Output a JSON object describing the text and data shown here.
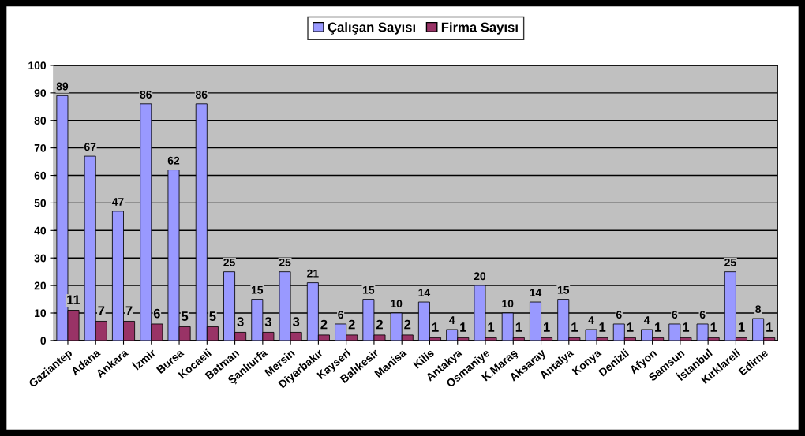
{
  "chart_data": {
    "type": "bar",
    "categories": [
      "Gaziantep",
      "Adana",
      "Ankara",
      "İzmir",
      "Bursa",
      "Kocaeli",
      "Batman",
      "Şanlıurfa",
      "Mersin",
      "Diyarbakır",
      "Kayseri",
      "Balıkesir",
      "Manisa",
      "Kilis",
      "Antakya",
      "Osmaniye",
      "K.Maraş",
      "Aksaray",
      "Antalya",
      "Konya",
      "Denizli",
      "Afyon",
      "Samsun",
      "İstanbul",
      "Kırklareli",
      "Edirne"
    ],
    "series": [
      {
        "name": "Çalışan Sayısı",
        "color": "#9999ff",
        "values": [
          89,
          67,
          47,
          86,
          62,
          86,
          25,
          15,
          25,
          21,
          6,
          15,
          10,
          14,
          4,
          20,
          10,
          14,
          15,
          4,
          6,
          4,
          6,
          6,
          25,
          8
        ]
      },
      {
        "name": "Firma Sayısı",
        "color": "#993366",
        "values": [
          11,
          7,
          7,
          6,
          5,
          5,
          3,
          3,
          3,
          2,
          2,
          2,
          2,
          1,
          1,
          1,
          1,
          1,
          1,
          1,
          1,
          1,
          1,
          1,
          1,
          1
        ]
      }
    ],
    "ylim": [
      0,
      100
    ],
    "yticks": [
      0,
      10,
      20,
      30,
      40,
      50,
      60,
      70,
      80,
      90,
      100
    ],
    "grid": "y",
    "legend": "top",
    "data_labels": true
  }
}
